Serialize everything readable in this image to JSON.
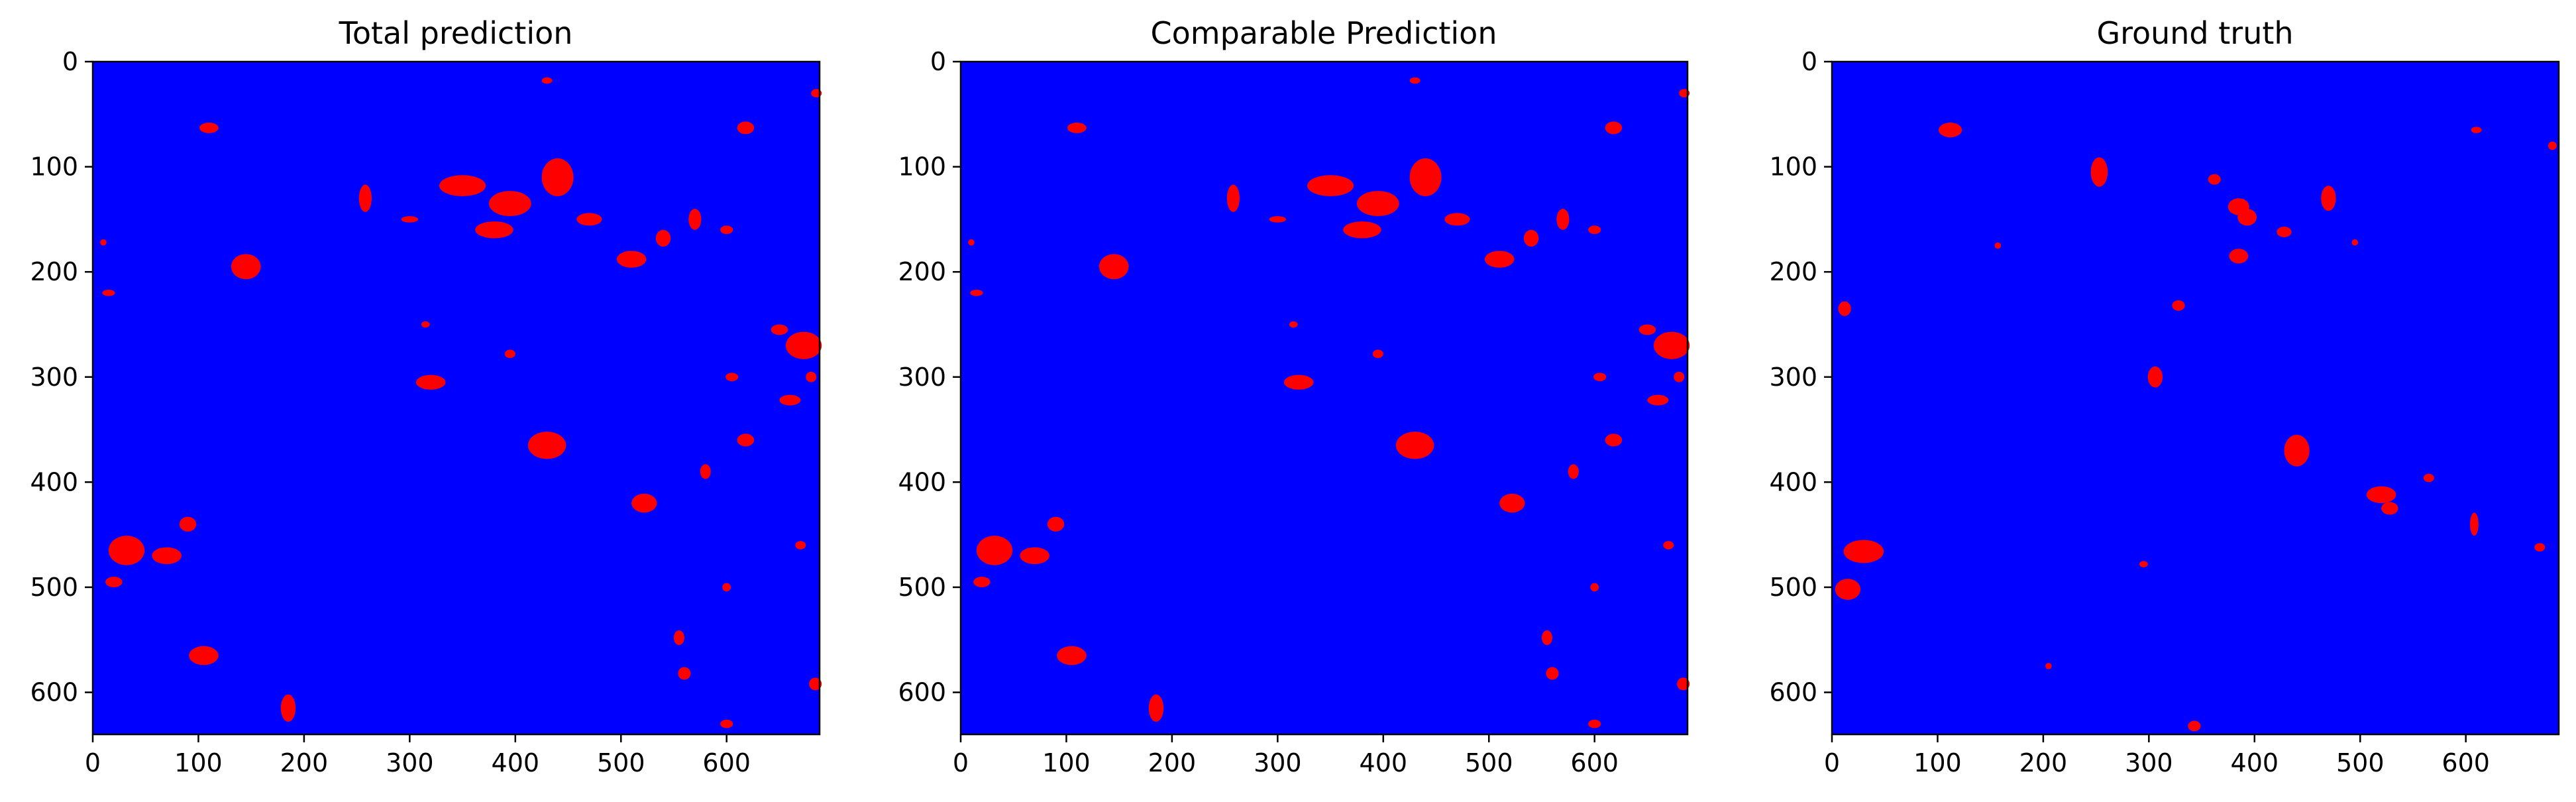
{
  "figure": {
    "background": "#ffffff"
  },
  "chart_data": [
    {
      "type": "heatmap",
      "title": "Total prediction",
      "xlabel": "",
      "ylabel": "",
      "xlim": [
        0,
        688
      ],
      "ylim": [
        640,
        0
      ],
      "x_ticks": [
        0,
        100,
        200,
        300,
        400,
        500,
        600
      ],
      "y_ticks": [
        0,
        100,
        200,
        300,
        400,
        500,
        600
      ],
      "grid": false,
      "colors": {
        "background_class": "#0000ff",
        "foreground_class": "#ff0000"
      },
      "blobs": [
        {
          "x": 110,
          "y": 63,
          "rx": 9,
          "ry": 5
        },
        {
          "x": 430,
          "y": 18,
          "rx": 5,
          "ry": 3
        },
        {
          "x": 685,
          "y": 30,
          "rx": 5,
          "ry": 4
        },
        {
          "x": 618,
          "y": 63,
          "rx": 8,
          "ry": 6
        },
        {
          "x": 258,
          "y": 130,
          "rx": 6,
          "ry": 13
        },
        {
          "x": 300,
          "y": 150,
          "rx": 8,
          "ry": 3
        },
        {
          "x": 350,
          "y": 118,
          "rx": 22,
          "ry": 10
        },
        {
          "x": 395,
          "y": 135,
          "rx": 20,
          "ry": 12
        },
        {
          "x": 440,
          "y": 110,
          "rx": 15,
          "ry": 18
        },
        {
          "x": 380,
          "y": 160,
          "rx": 18,
          "ry": 8
        },
        {
          "x": 470,
          "y": 150,
          "rx": 12,
          "ry": 6
        },
        {
          "x": 510,
          "y": 188,
          "rx": 14,
          "ry": 8
        },
        {
          "x": 540,
          "y": 168,
          "rx": 7,
          "ry": 8
        },
        {
          "x": 570,
          "y": 150,
          "rx": 6,
          "ry": 10
        },
        {
          "x": 600,
          "y": 160,
          "rx": 6,
          "ry": 4
        },
        {
          "x": 145,
          "y": 195,
          "rx": 14,
          "ry": 12
        },
        {
          "x": 15,
          "y": 220,
          "rx": 6,
          "ry": 3
        },
        {
          "x": 10,
          "y": 172,
          "rx": 3,
          "ry": 3
        },
        {
          "x": 320,
          "y": 305,
          "rx": 14,
          "ry": 7
        },
        {
          "x": 673,
          "y": 270,
          "rx": 17,
          "ry": 13
        },
        {
          "x": 650,
          "y": 255,
          "rx": 8,
          "ry": 5
        },
        {
          "x": 660,
          "y": 322,
          "rx": 10,
          "ry": 5
        },
        {
          "x": 618,
          "y": 360,
          "rx": 8,
          "ry": 6
        },
        {
          "x": 605,
          "y": 300,
          "rx": 6,
          "ry": 4
        },
        {
          "x": 680,
          "y": 300,
          "rx": 5,
          "ry": 5
        },
        {
          "x": 430,
          "y": 365,
          "rx": 18,
          "ry": 13
        },
        {
          "x": 522,
          "y": 420,
          "rx": 12,
          "ry": 9
        },
        {
          "x": 580,
          "y": 390,
          "rx": 5,
          "ry": 7
        },
        {
          "x": 32,
          "y": 465,
          "rx": 17,
          "ry": 14
        },
        {
          "x": 70,
          "y": 470,
          "rx": 14,
          "ry": 8
        },
        {
          "x": 20,
          "y": 495,
          "rx": 8,
          "ry": 5
        },
        {
          "x": 90,
          "y": 440,
          "rx": 8,
          "ry": 7
        },
        {
          "x": 105,
          "y": 565,
          "rx": 14,
          "ry": 9
        },
        {
          "x": 555,
          "y": 548,
          "rx": 5,
          "ry": 7
        },
        {
          "x": 560,
          "y": 582,
          "rx": 6,
          "ry": 6
        },
        {
          "x": 684,
          "y": 592,
          "rx": 6,
          "ry": 6
        },
        {
          "x": 185,
          "y": 615,
          "rx": 7,
          "ry": 13
        },
        {
          "x": 600,
          "y": 500,
          "rx": 4,
          "ry": 4
        },
        {
          "x": 670,
          "y": 460,
          "rx": 5,
          "ry": 4
        },
        {
          "x": 315,
          "y": 250,
          "rx": 4,
          "ry": 3
        },
        {
          "x": 395,
          "y": 278,
          "rx": 5,
          "ry": 4
        },
        {
          "x": 600,
          "y": 630,
          "rx": 6,
          "ry": 4
        }
      ]
    },
    {
      "type": "heatmap",
      "title": "Comparable Prediction",
      "xlabel": "",
      "ylabel": "",
      "xlim": [
        0,
        688
      ],
      "ylim": [
        640,
        0
      ],
      "x_ticks": [
        0,
        100,
        200,
        300,
        400,
        500,
        600
      ],
      "y_ticks": [
        0,
        100,
        200,
        300,
        400,
        500,
        600
      ],
      "grid": false,
      "colors": {
        "background_class": "#0000ff",
        "foreground_class": "#ff0000"
      },
      "blobs": [
        {
          "x": 110,
          "y": 63,
          "rx": 9,
          "ry": 5
        },
        {
          "x": 430,
          "y": 18,
          "rx": 5,
          "ry": 3
        },
        {
          "x": 685,
          "y": 30,
          "rx": 5,
          "ry": 4
        },
        {
          "x": 618,
          "y": 63,
          "rx": 8,
          "ry": 6
        },
        {
          "x": 258,
          "y": 130,
          "rx": 6,
          "ry": 13
        },
        {
          "x": 300,
          "y": 150,
          "rx": 8,
          "ry": 3
        },
        {
          "x": 350,
          "y": 118,
          "rx": 22,
          "ry": 10
        },
        {
          "x": 395,
          "y": 135,
          "rx": 20,
          "ry": 12
        },
        {
          "x": 440,
          "y": 110,
          "rx": 15,
          "ry": 18
        },
        {
          "x": 380,
          "y": 160,
          "rx": 18,
          "ry": 8
        },
        {
          "x": 470,
          "y": 150,
          "rx": 12,
          "ry": 6
        },
        {
          "x": 510,
          "y": 188,
          "rx": 14,
          "ry": 8
        },
        {
          "x": 540,
          "y": 168,
          "rx": 7,
          "ry": 8
        },
        {
          "x": 570,
          "y": 150,
          "rx": 6,
          "ry": 10
        },
        {
          "x": 600,
          "y": 160,
          "rx": 6,
          "ry": 4
        },
        {
          "x": 145,
          "y": 195,
          "rx": 14,
          "ry": 12
        },
        {
          "x": 15,
          "y": 220,
          "rx": 6,
          "ry": 3
        },
        {
          "x": 10,
          "y": 172,
          "rx": 3,
          "ry": 3
        },
        {
          "x": 320,
          "y": 305,
          "rx": 14,
          "ry": 7
        },
        {
          "x": 673,
          "y": 270,
          "rx": 17,
          "ry": 13
        },
        {
          "x": 650,
          "y": 255,
          "rx": 8,
          "ry": 5
        },
        {
          "x": 660,
          "y": 322,
          "rx": 10,
          "ry": 5
        },
        {
          "x": 618,
          "y": 360,
          "rx": 8,
          "ry": 6
        },
        {
          "x": 605,
          "y": 300,
          "rx": 6,
          "ry": 4
        },
        {
          "x": 680,
          "y": 300,
          "rx": 5,
          "ry": 5
        },
        {
          "x": 430,
          "y": 365,
          "rx": 18,
          "ry": 13
        },
        {
          "x": 522,
          "y": 420,
          "rx": 12,
          "ry": 9
        },
        {
          "x": 580,
          "y": 390,
          "rx": 5,
          "ry": 7
        },
        {
          "x": 32,
          "y": 465,
          "rx": 17,
          "ry": 14
        },
        {
          "x": 70,
          "y": 470,
          "rx": 14,
          "ry": 8
        },
        {
          "x": 20,
          "y": 495,
          "rx": 8,
          "ry": 5
        },
        {
          "x": 90,
          "y": 440,
          "rx": 8,
          "ry": 7
        },
        {
          "x": 105,
          "y": 565,
          "rx": 14,
          "ry": 9
        },
        {
          "x": 555,
          "y": 548,
          "rx": 5,
          "ry": 7
        },
        {
          "x": 560,
          "y": 582,
          "rx": 6,
          "ry": 6
        },
        {
          "x": 684,
          "y": 592,
          "rx": 6,
          "ry": 6
        },
        {
          "x": 185,
          "y": 615,
          "rx": 7,
          "ry": 13
        },
        {
          "x": 600,
          "y": 500,
          "rx": 4,
          "ry": 4
        },
        {
          "x": 670,
          "y": 460,
          "rx": 5,
          "ry": 4
        },
        {
          "x": 315,
          "y": 250,
          "rx": 4,
          "ry": 3
        },
        {
          "x": 395,
          "y": 278,
          "rx": 5,
          "ry": 4
        },
        {
          "x": 600,
          "y": 630,
          "rx": 6,
          "ry": 4
        }
      ]
    },
    {
      "type": "heatmap",
      "title": "Ground truth",
      "xlabel": "",
      "ylabel": "",
      "xlim": [
        0,
        688
      ],
      "ylim": [
        640,
        0
      ],
      "x_ticks": [
        0,
        100,
        200,
        300,
        400,
        500,
        600
      ],
      "y_ticks": [
        0,
        100,
        200,
        300,
        400,
        500,
        600
      ],
      "grid": false,
      "colors": {
        "background_class": "#0000ff",
        "foreground_class": "#ff0000"
      },
      "blobs": [
        {
          "x": 112,
          "y": 65,
          "rx": 11,
          "ry": 7
        },
        {
          "x": 253,
          "y": 105,
          "rx": 8,
          "ry": 14
        },
        {
          "x": 362,
          "y": 112,
          "rx": 6,
          "ry": 5
        },
        {
          "x": 385,
          "y": 138,
          "rx": 10,
          "ry": 8
        },
        {
          "x": 393,
          "y": 148,
          "rx": 9,
          "ry": 8
        },
        {
          "x": 470,
          "y": 130,
          "rx": 7,
          "ry": 12
        },
        {
          "x": 428,
          "y": 162,
          "rx": 7,
          "ry": 5
        },
        {
          "x": 385,
          "y": 185,
          "rx": 9,
          "ry": 7
        },
        {
          "x": 12,
          "y": 235,
          "rx": 6,
          "ry": 7
        },
        {
          "x": 328,
          "y": 232,
          "rx": 6,
          "ry": 5
        },
        {
          "x": 610,
          "y": 65,
          "rx": 5,
          "ry": 3
        },
        {
          "x": 682,
          "y": 80,
          "rx": 4,
          "ry": 4
        },
        {
          "x": 495,
          "y": 172,
          "rx": 3,
          "ry": 3
        },
        {
          "x": 306,
          "y": 300,
          "rx": 7,
          "ry": 10
        },
        {
          "x": 440,
          "y": 370,
          "rx": 12,
          "ry": 15
        },
        {
          "x": 565,
          "y": 396,
          "rx": 5,
          "ry": 4
        },
        {
          "x": 520,
          "y": 412,
          "rx": 14,
          "ry": 8
        },
        {
          "x": 528,
          "y": 425,
          "rx": 8,
          "ry": 6
        },
        {
          "x": 608,
          "y": 440,
          "rx": 4,
          "ry": 11
        },
        {
          "x": 670,
          "y": 462,
          "rx": 5,
          "ry": 4
        },
        {
          "x": 30,
          "y": 466,
          "rx": 19,
          "ry": 11
        },
        {
          "x": 15,
          "y": 502,
          "rx": 12,
          "ry": 10
        },
        {
          "x": 295,
          "y": 478,
          "rx": 4,
          "ry": 3
        },
        {
          "x": 205,
          "y": 575,
          "rx": 3,
          "ry": 3
        },
        {
          "x": 343,
          "y": 632,
          "rx": 6,
          "ry": 5
        },
        {
          "x": 157,
          "y": 175,
          "rx": 3,
          "ry": 3
        }
      ]
    }
  ]
}
